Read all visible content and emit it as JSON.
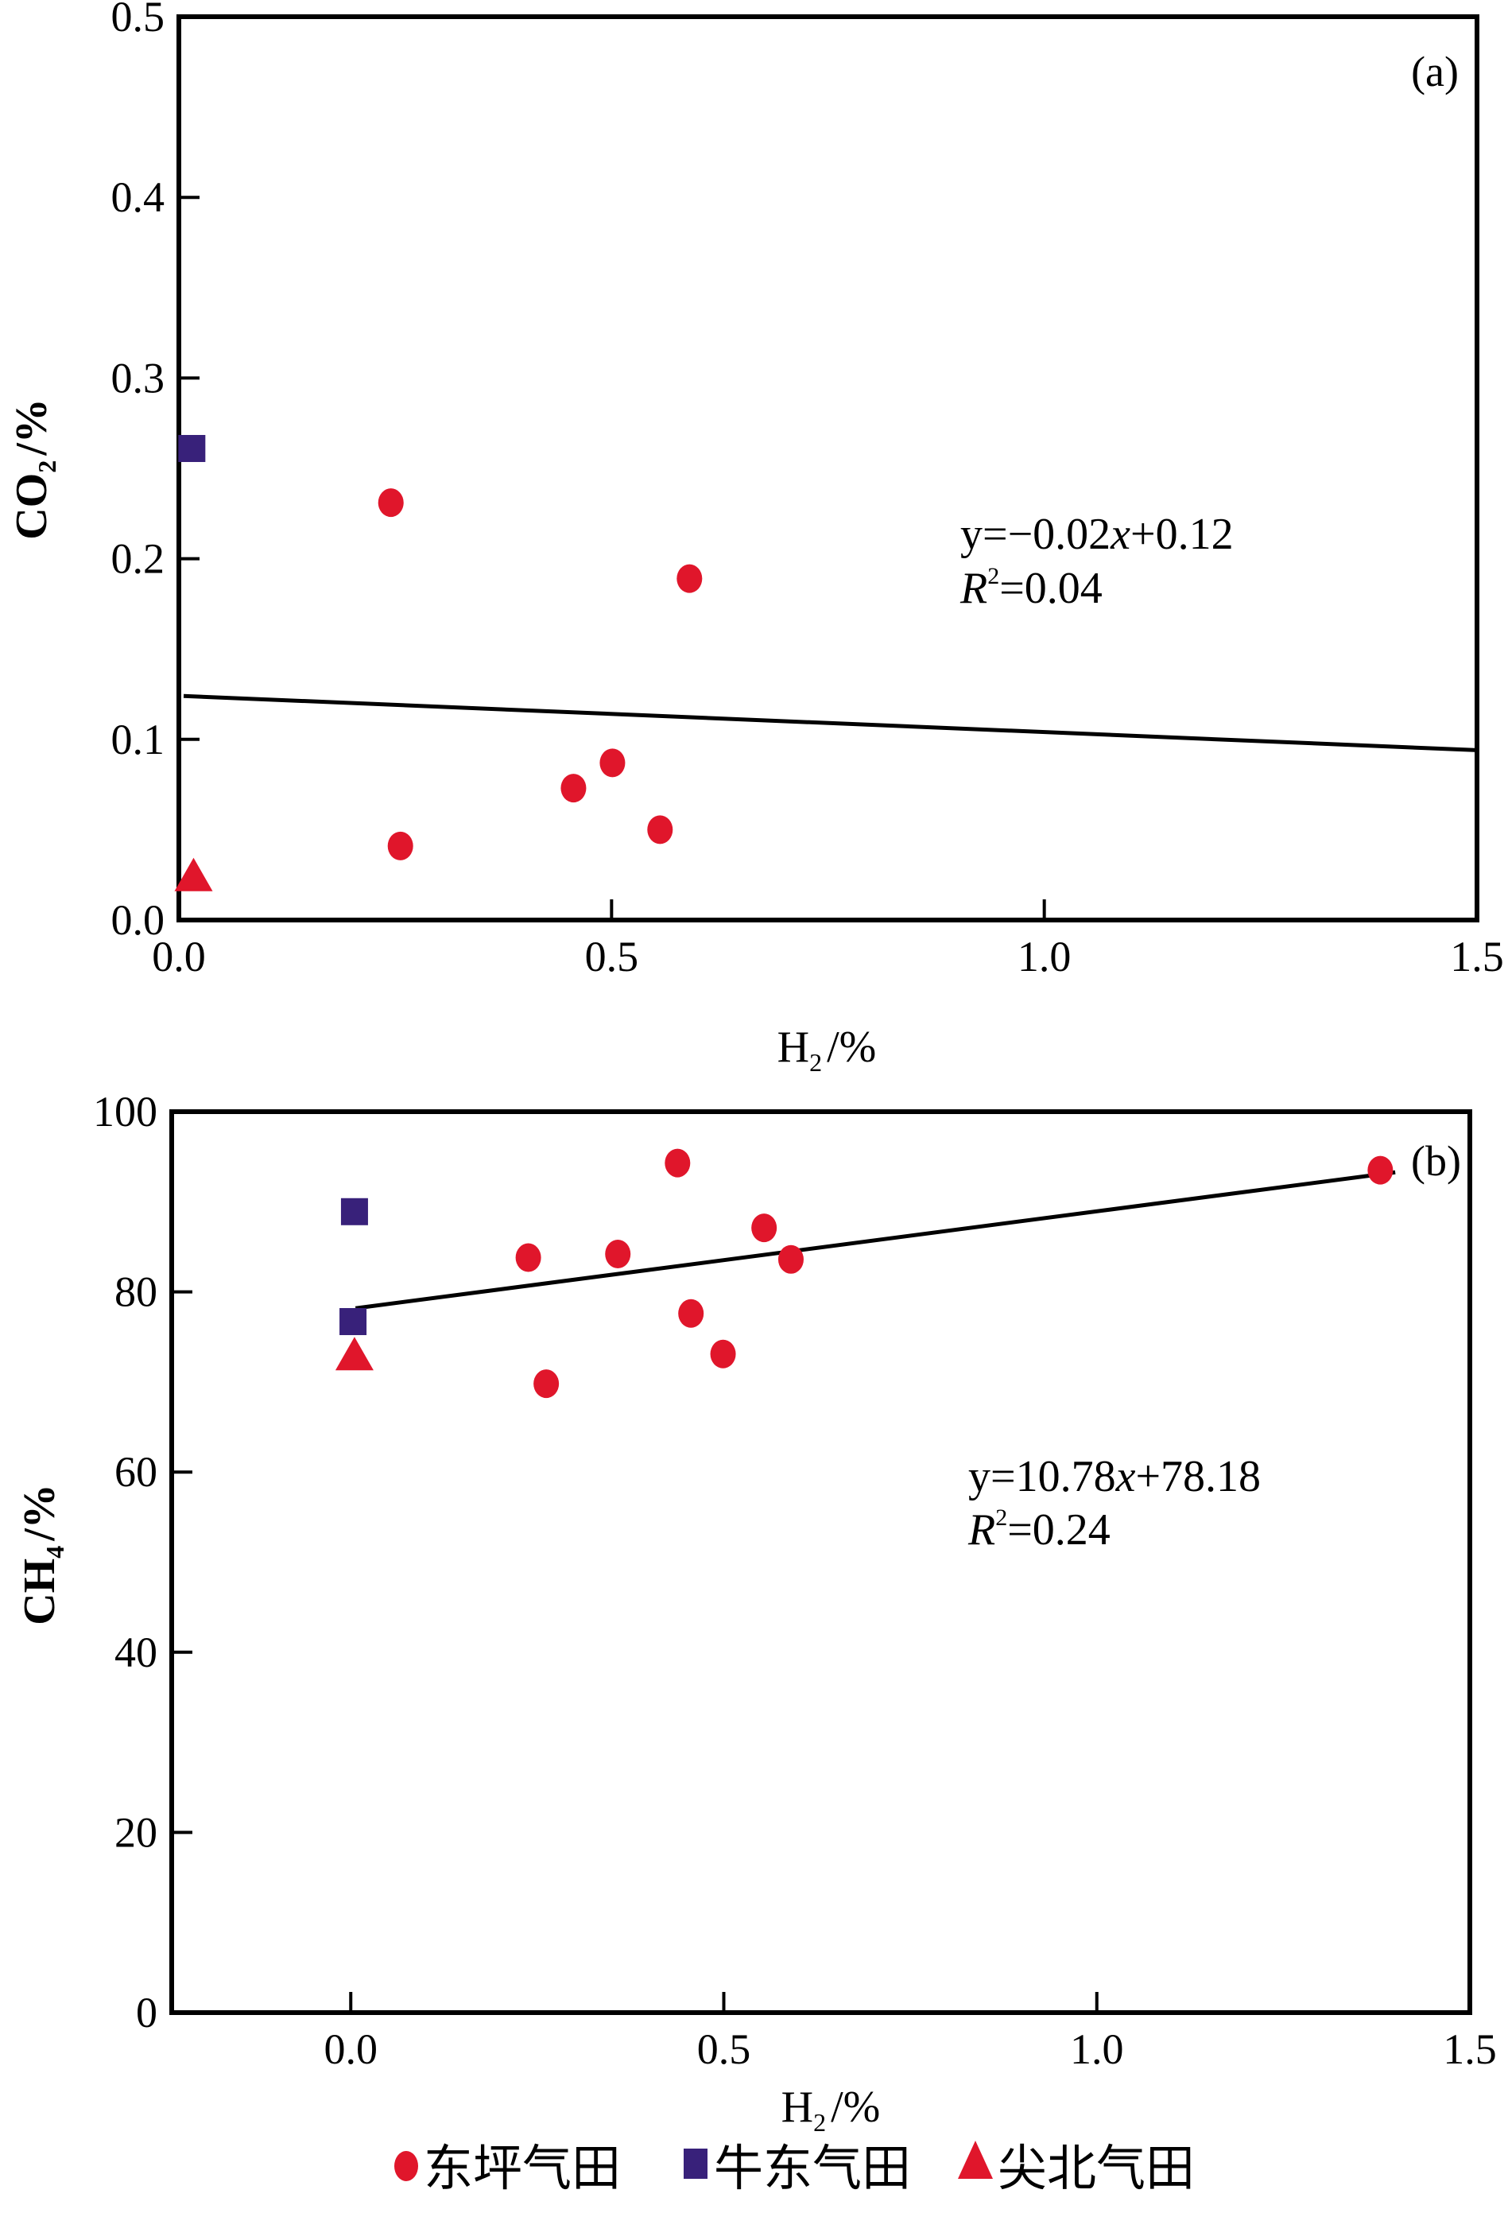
{
  "colors": {
    "red": "#e0162b",
    "blue": "#38217a",
    "axis": "#000000"
  },
  "chart_data": [
    {
      "type": "scatter",
      "panel": "(a)",
      "xlabel": "H2/%",
      "ylabel": "CO2/%",
      "xlim": [
        0.0,
        1.5
      ],
      "ylim": [
        0.0,
        0.5
      ],
      "xticks": [
        "0.0",
        "0.5",
        "1.0",
        "1.5"
      ],
      "xtick_values": [
        0.0,
        0.5,
        1.0,
        1.5
      ],
      "yticks": [
        "0.0",
        "0.1",
        "0.2",
        "0.3",
        "0.4",
        "0.5"
      ],
      "ytick_values": [
        0.0,
        0.1,
        0.2,
        0.3,
        0.4,
        0.5
      ],
      "grid": false,
      "series": [
        {
          "name": "东坪气田",
          "marker": "circle",
          "color": "#e0162b",
          "points": [
            [
              0.245,
              0.231
            ],
            [
              0.59,
              0.189
            ],
            [
              0.501,
              0.087
            ],
            [
              0.456,
              0.073
            ],
            [
              0.556,
              0.05
            ],
            [
              0.256,
              0.041
            ]
          ]
        },
        {
          "name": "牛东气田",
          "marker": "square",
          "color": "#38217a",
          "points": [
            [
              0.015,
              0.261
            ]
          ]
        },
        {
          "name": "尖北气田",
          "marker": "triangle",
          "color": "#e0162b",
          "points": [
            [
              0.017,
              0.023
            ]
          ]
        }
      ],
      "trendline": {
        "slope": -0.02,
        "intercept": 0.124,
        "x_range": [
          0.0,
          1.5
        ]
      },
      "equation": "y=−0.02x+0.12",
      "r2": "R²=0.04",
      "r2_value": "0.04"
    },
    {
      "type": "scatter",
      "panel": "(b)",
      "xlabel": "H2/%",
      "ylabel": "CH4/%",
      "xlim": [
        -0.24,
        1.5
      ],
      "ylim": [
        0,
        100
      ],
      "xticks": [
        "0.0",
        "0.5",
        "1.0",
        "1.5"
      ],
      "xtick_values": [
        0.0,
        0.5,
        1.0,
        1.5
      ],
      "yticks": [
        "0",
        "20",
        "40",
        "60",
        "80",
        "100"
      ],
      "ytick_values": [
        0,
        20,
        40,
        60,
        80,
        100
      ],
      "grid": false,
      "series": [
        {
          "name": "东坪气田",
          "marker": "circle",
          "color": "#e0162b",
          "points": [
            [
              0.438,
              94.3
            ],
            [
              1.38,
              93.5
            ],
            [
              0.554,
              87.1
            ],
            [
              0.238,
              83.8
            ],
            [
              0.358,
              84.2
            ],
            [
              0.59,
              83.6
            ],
            [
              0.456,
              77.6
            ],
            [
              0.499,
              73.1
            ],
            [
              0.262,
              69.8
            ]
          ]
        },
        {
          "name": "牛东气田",
          "marker": "square",
          "color": "#38217a",
          "points": [
            [
              0.005,
              88.9
            ],
            [
              0.003,
              76.7
            ]
          ]
        },
        {
          "name": "尖北气田",
          "marker": "triangle",
          "color": "#e0162b",
          "points": [
            [
              0.005,
              72.7
            ]
          ]
        }
      ],
      "trendline": {
        "slope": 10.78,
        "intercept": 78.18,
        "x_range": [
          0.0,
          1.4
        ]
      },
      "equation": "y=10.78x+78.18",
      "r2": "R²=0.24",
      "r2_value": "0.24"
    }
  ],
  "labels": {
    "a": {
      "panel": "(a)",
      "ylabel_main": "CO",
      "ylabel_sub": "2",
      "ylabel_unit": "/%",
      "xlabel_main": "H",
      "xlabel_sub": "2",
      "xlabel_unit": "/%",
      "eq_prefix": "y=−0.02",
      "eq_var": "x",
      "eq_suffix": "+0.12",
      "r2_var": "R",
      "r2_sup": "2",
      "r2_val": "=0.04"
    },
    "b": {
      "panel": "(b)",
      "ylabel_main": "CH",
      "ylabel_sub": "4",
      "ylabel_unit": "/%",
      "xlabel_main": "H",
      "xlabel_sub": "2",
      "xlabel_unit": "/%",
      "eq_prefix": "y=10.78",
      "eq_var": "x",
      "eq_suffix": "+78.18",
      "r2_var": "R",
      "r2_sup": "2",
      "r2_val": "=0.24"
    }
  },
  "legend": {
    "position": "bottom-center",
    "items": [
      {
        "label": "东坪气田",
        "marker": "circle",
        "color": "#e0162b"
      },
      {
        "label": "牛东气田",
        "marker": "square",
        "color": "#38217a"
      },
      {
        "label": "尖北气田",
        "marker": "triangle",
        "color": "#e0162b"
      }
    ]
  }
}
